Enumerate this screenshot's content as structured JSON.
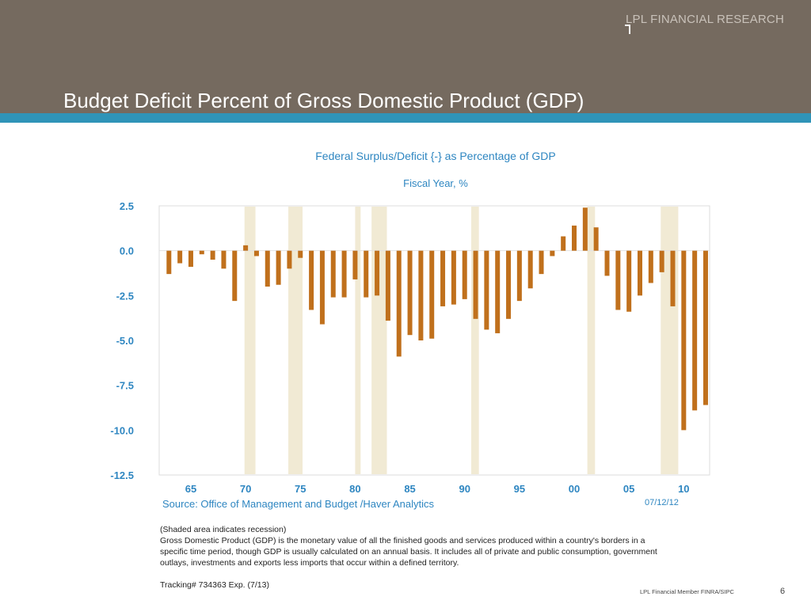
{
  "header": {
    "brand": "LPL FINANCIAL RESEARCH",
    "title": "Budget Deficit Percent of Gross Domestic Product (GDP)"
  },
  "colors": {
    "header_bg": "#756a5f",
    "accent_band": "#2f94b8",
    "bar": "#c0701c",
    "recession": "#f1ead4",
    "text_blue": "#2e86c1"
  },
  "chart_data": {
    "type": "bar",
    "title": "Federal Surplus/Deficit {-} as Percentage of GDP",
    "subtitle": "Fiscal Year, %",
    "xlabel": "",
    "ylabel": "",
    "ylim": [
      -12.5,
      2.5
    ],
    "y_ticks": [
      "2.5",
      "0.0",
      "-2.5",
      "-5.0",
      "-7.5",
      "-10.0",
      "-12.5"
    ],
    "x_ticks": [
      "65",
      "70",
      "75",
      "80",
      "85",
      "90",
      "95",
      "00",
      "05",
      "10"
    ],
    "x_tick_years": [
      1965,
      1970,
      1975,
      1980,
      1985,
      1990,
      1995,
      2000,
      2005,
      2010
    ],
    "grid": false,
    "legend": "none",
    "years": [
      1963,
      1964,
      1965,
      1966,
      1967,
      1968,
      1969,
      1970,
      1971,
      1972,
      1973,
      1974,
      1975,
      1976,
      1977,
      1978,
      1979,
      1980,
      1981,
      1982,
      1983,
      1984,
      1985,
      1986,
      1987,
      1988,
      1989,
      1990,
      1991,
      1992,
      1993,
      1994,
      1995,
      1996,
      1997,
      1998,
      1999,
      2000,
      2001,
      2002,
      2003,
      2004,
      2005,
      2006,
      2007,
      2008,
      2009,
      2010,
      2011,
      2012
    ],
    "values": [
      -1.3,
      -0.7,
      -0.9,
      -0.2,
      -0.5,
      -1.0,
      -2.8,
      0.3,
      -0.3,
      -2.0,
      -1.9,
      -1.0,
      -0.4,
      -3.3,
      -4.1,
      -2.6,
      -2.6,
      -1.6,
      -2.6,
      -2.5,
      -3.9,
      -5.9,
      -4.7,
      -5.0,
      -4.9,
      -3.1,
      -3.0,
      -2.7,
      -3.8,
      -4.4,
      -4.6,
      -3.8,
      -2.8,
      -2.1,
      -1.3,
      -0.3,
      0.8,
      1.4,
      2.4,
      1.3,
      -1.4,
      -3.3,
      -3.4,
      -2.5,
      -1.8,
      -1.2,
      -3.1,
      -10.0,
      -8.9,
      -8.6
    ],
    "recessions": [
      [
        1969.9,
        1970.9
      ],
      [
        1973.9,
        1975.2
      ],
      [
        1980.0,
        1980.5
      ],
      [
        1981.5,
        1982.9
      ],
      [
        1990.6,
        1991.3
      ],
      [
        2001.2,
        2001.9
      ],
      [
        2007.9,
        2009.5
      ]
    ]
  },
  "source": "Source:  Office of Management and Budget /Haver Analytics",
  "date": "07/12/12",
  "notes": {
    "line1": "(Shaded area indicates recession)",
    "line2": "Gross Domestic Product (GDP) is the monetary value of all the finished goods and services produced within a country's borders in a specific time period, though GDP is usually calculated on an annual basis. It includes all of private and public consumption, government outlays, investments and exports less imports that occur within a defined territory."
  },
  "tracking": "Tracking# 734363 Exp. (7/13)",
  "footer": {
    "member": "LPL Financial Member FINRA/SIPC",
    "page": "6"
  }
}
